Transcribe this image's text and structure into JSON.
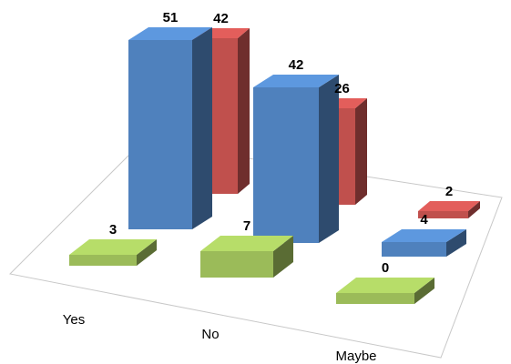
{
  "chart_data": {
    "type": "bar",
    "subtype": "3d-clustered-column",
    "categories": [
      "Yes",
      "No",
      "Maybe"
    ],
    "series": [
      {
        "values": [
          51,
          42,
          4
        ],
        "color": "#4f81bd"
      },
      {
        "values": [
          42,
          26,
          2
        ],
        "color": "#c0504d"
      },
      {
        "values": [
          3,
          7,
          0
        ],
        "color": "#9bbb59"
      }
    ],
    "data_labels": true,
    "legend": "none",
    "grid": false,
    "title": "",
    "xlabel": "",
    "ylabel": "",
    "ylim": [
      0,
      51
    ]
  }
}
